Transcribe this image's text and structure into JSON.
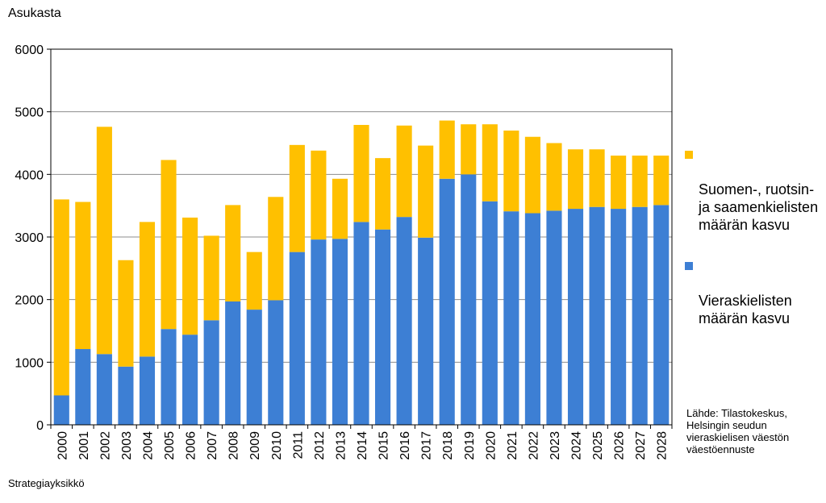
{
  "chart_data": {
    "type": "bar",
    "stacked": true,
    "ylabel": "Asukasta",
    "ylim": [
      0,
      6000
    ],
    "yticks": [
      0,
      1000,
      2000,
      3000,
      4000,
      5000,
      6000
    ],
    "grid": true,
    "legend_position": "right",
    "categories": [
      "2000",
      "2001",
      "2002",
      "2003",
      "2004",
      "2005",
      "2006",
      "2007",
      "2008",
      "2009",
      "2010",
      "2011",
      "2012",
      "2013",
      "2014",
      "2015",
      "2016",
      "2017",
      "2018",
      "2019",
      "2020",
      "2021",
      "2022",
      "2023",
      "2024",
      "2025",
      "2026",
      "2027",
      "2028"
    ],
    "series": [
      {
        "name": "Vieraskielisten\nmäärän kasvu",
        "color": "#3d7fd4",
        "values": [
          470,
          1210,
          1130,
          930,
          1090,
          1530,
          1440,
          1670,
          1970,
          1840,
          1990,
          2760,
          2960,
          2970,
          3240,
          3120,
          3320,
          2990,
          3930,
          4000,
          3570,
          3410,
          3380,
          3420,
          3450,
          3480,
          3450,
          3480,
          3510
        ]
      },
      {
        "name": "Suomen-, ruotsin-\nja saamenkielisten\nmäärän kasvu",
        "color": "#ffc000",
        "values": [
          3130,
          2350,
          3630,
          1700,
          2150,
          2700,
          1870,
          1350,
          1540,
          920,
          1650,
          1710,
          1420,
          960,
          1550,
          1140,
          1460,
          1470,
          930,
          800,
          1230,
          1290,
          1220,
          1080,
          950,
          920,
          850,
          820,
          790
        ]
      }
    ]
  },
  "source_text": "Lähde: Tilastokeskus,\nHelsingin seudun\nvieraskielisen väestön\nväestöennuste",
  "footer_text": "Strategiayksikkö"
}
